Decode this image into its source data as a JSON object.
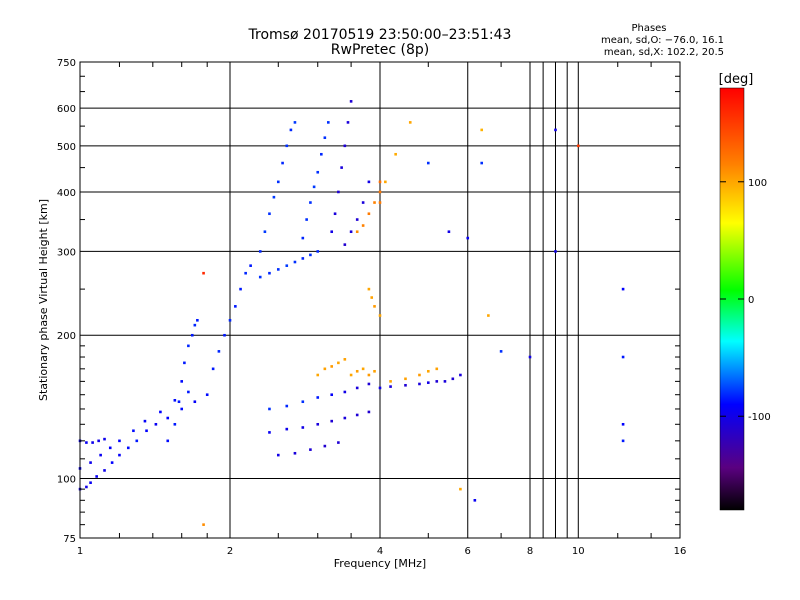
{
  "chart_data": {
    "type": "scatter",
    "title": "Tromsø 20170519 23:50:00–23:51:43",
    "subtitle": "RwPretec (8p)",
    "xlabel": "Frequency [MHz]",
    "ylabel": "Stationary phase Virtual Height [km]",
    "xscale": "log",
    "yscale": "log",
    "xlim": [
      1,
      16
    ],
    "ylim": [
      75,
      750
    ],
    "xticks": [
      1,
      2,
      4,
      6,
      8,
      10,
      16
    ],
    "yticks": [
      75,
      100,
      200,
      300,
      400,
      500,
      600,
      750
    ],
    "grid": true,
    "annotation": {
      "title": "Phases",
      "lines": [
        "mean, sd,O: −76.0, 16.1",
        "mean, sd,X: 102.2, 20.5"
      ]
    },
    "colorbar": {
      "label": "[deg]",
      "range": [
        -180,
        180
      ],
      "ticks": [
        100,
        0,
        -100
      ]
    },
    "series": [
      {
        "color_by": "phase_deg",
        "points": [
          [
            1.0,
            95,
            -100
          ],
          [
            1.03,
            96,
            -100
          ],
          [
            1.05,
            98,
            -95
          ],
          [
            1.08,
            101,
            -95
          ],
          [
            1.12,
            104,
            -98
          ],
          [
            1.16,
            108,
            -90
          ],
          [
            1.2,
            112,
            -92
          ],
          [
            1.25,
            116,
            -88
          ],
          [
            1.3,
            120,
            -85
          ],
          [
            1.36,
            126,
            -90
          ],
          [
            1.42,
            130,
            -95
          ],
          [
            1.5,
            134,
            -90
          ],
          [
            1.6,
            140,
            -88
          ],
          [
            1.7,
            145,
            -92
          ],
          [
            1.0,
            105,
            -95
          ],
          [
            1.05,
            108,
            -98
          ],
          [
            1.1,
            112,
            -95
          ],
          [
            1.15,
            116,
            -92
          ],
          [
            1.2,
            120,
            -90
          ],
          [
            1.28,
            126,
            -88
          ],
          [
            1.35,
            132,
            -92
          ],
          [
            1.45,
            138,
            -90
          ],
          [
            1.55,
            146,
            -88
          ],
          [
            1.65,
            152,
            -85
          ],
          [
            1.0,
            120,
            -95
          ],
          [
            1.03,
            119,
            -95
          ],
          [
            1.06,
            119,
            -98
          ],
          [
            1.09,
            120,
            -100
          ],
          [
            1.12,
            121,
            -98
          ],
          [
            1.5,
            120,
            -88
          ],
          [
            1.55,
            130,
            -85
          ],
          [
            1.58,
            145,
            -85
          ],
          [
            1.6,
            160,
            -88
          ],
          [
            1.62,
            175,
            -85
          ],
          [
            1.65,
            190,
            -82
          ],
          [
            1.68,
            200,
            -85
          ],
          [
            1.7,
            210,
            -82
          ],
          [
            1.72,
            215,
            -85
          ],
          [
            1.8,
            150,
            -88
          ],
          [
            1.85,
            170,
            -85
          ],
          [
            1.9,
            185,
            -82
          ],
          [
            1.95,
            200,
            -85
          ],
          [
            2.0,
            215,
            -82
          ],
          [
            2.05,
            230,
            -85
          ],
          [
            2.1,
            250,
            -85
          ],
          [
            2.15,
            270,
            -82
          ],
          [
            2.2,
            280,
            -85
          ],
          [
            2.3,
            265,
            -80
          ],
          [
            2.4,
            270,
            -82
          ],
          [
            2.5,
            275,
            -80
          ],
          [
            2.6,
            280,
            -78
          ],
          [
            2.7,
            285,
            -80
          ],
          [
            2.8,
            290,
            -82
          ],
          [
            2.9,
            295,
            -80
          ],
          [
            3.0,
            300,
            -82
          ],
          [
            2.3,
            300,
            -82
          ],
          [
            2.35,
            330,
            -78
          ],
          [
            2.4,
            360,
            -80
          ],
          [
            2.45,
            390,
            -78
          ],
          [
            2.5,
            420,
            -80
          ],
          [
            2.55,
            460,
            -82
          ],
          [
            2.6,
            500,
            -80
          ],
          [
            2.65,
            540,
            -82
          ],
          [
            2.7,
            560,
            -78
          ],
          [
            2.8,
            320,
            -82
          ],
          [
            2.85,
            350,
            -80
          ],
          [
            2.9,
            380,
            -80
          ],
          [
            2.95,
            410,
            -78
          ],
          [
            3.0,
            440,
            -80
          ],
          [
            3.05,
            480,
            -82
          ],
          [
            3.1,
            520,
            -80
          ],
          [
            3.15,
            560,
            -80
          ],
          [
            3.2,
            330,
            -100
          ],
          [
            3.25,
            360,
            -105
          ],
          [
            3.3,
            400,
            -108
          ],
          [
            3.35,
            450,
            -105
          ],
          [
            3.4,
            500,
            -108
          ],
          [
            3.45,
            560,
            -105
          ],
          [
            3.5,
            620,
            -108
          ],
          [
            3.4,
            310,
            -110
          ],
          [
            3.5,
            330,
            -105
          ],
          [
            3.6,
            350,
            -108
          ],
          [
            3.7,
            380,
            -105
          ],
          [
            3.8,
            420,
            -100
          ],
          [
            2.4,
            140,
            -80
          ],
          [
            2.6,
            142,
            -82
          ],
          [
            2.8,
            145,
            -80
          ],
          [
            3.0,
            148,
            -85
          ],
          [
            3.2,
            150,
            -92
          ],
          [
            3.4,
            152,
            -100
          ],
          [
            3.6,
            155,
            -105
          ],
          [
            3.8,
            158,
            -108
          ],
          [
            2.4,
            125,
            -95
          ],
          [
            2.6,
            127,
            -98
          ],
          [
            2.8,
            128,
            -100
          ],
          [
            3.0,
            130,
            -105
          ],
          [
            3.2,
            132,
            -108
          ],
          [
            3.4,
            134,
            -105
          ],
          [
            3.6,
            136,
            -108
          ],
          [
            3.8,
            138,
            -110
          ],
          [
            2.5,
            112,
            -100
          ],
          [
            2.7,
            113,
            -105
          ],
          [
            2.9,
            115,
            -108
          ],
          [
            3.1,
            117,
            -110
          ],
          [
            3.3,
            119,
            -108
          ],
          [
            3.0,
            165,
            100
          ],
          [
            3.1,
            170,
            102
          ],
          [
            3.2,
            172,
            105
          ],
          [
            3.3,
            175,
            100
          ],
          [
            3.4,
            178,
            102
          ],
          [
            3.5,
            165,
            100
          ],
          [
            3.6,
            168,
            103
          ],
          [
            3.7,
            170,
            100
          ],
          [
            3.8,
            165,
            105
          ],
          [
            3.9,
            168,
            102
          ],
          [
            4.0,
            155,
            -100
          ],
          [
            4.2,
            156,
            -105
          ],
          [
            4.5,
            157,
            -108
          ],
          [
            4.8,
            158,
            -105
          ],
          [
            5.0,
            159,
            -100
          ],
          [
            5.2,
            160,
            -108
          ],
          [
            5.4,
            160,
            -105
          ],
          [
            5.6,
            162,
            -108
          ],
          [
            5.8,
            165,
            -105
          ],
          [
            4.2,
            160,
            100
          ],
          [
            4.5,
            162,
            102
          ],
          [
            4.8,
            165,
            105
          ],
          [
            5.0,
            168,
            100
          ],
          [
            5.2,
            170,
            102
          ],
          [
            3.6,
            330,
            110
          ],
          [
            3.7,
            340,
            115
          ],
          [
            3.8,
            360,
            118
          ],
          [
            3.9,
            380,
            115
          ],
          [
            4.0,
            400,
            120
          ],
          [
            4.0,
            420,
            125
          ],
          [
            4.0,
            380,
            118
          ],
          [
            3.8,
            250,
            100
          ],
          [
            3.85,
            240,
            102
          ],
          [
            3.9,
            230,
            105
          ],
          [
            4.0,
            220,
            100
          ],
          [
            4.1,
            420,
            100
          ],
          [
            4.3,
            480,
            98
          ],
          [
            4.6,
            560,
            100
          ],
          [
            5.0,
            460,
            -80
          ],
          [
            5.5,
            330,
            -100
          ],
          [
            6.0,
            320,
            -95
          ],
          [
            6.4,
            540,
            95
          ],
          [
            6.4,
            460,
            -80
          ],
          [
            6.6,
            220,
            100
          ],
          [
            7.0,
            185,
            -80
          ],
          [
            8.0,
            180,
            -100
          ],
          [
            9.0,
            540,
            -100
          ],
          [
            9.0,
            300,
            -100
          ],
          [
            10.0,
            500,
            150
          ],
          [
            12.3,
            250,
            -90
          ],
          [
            12.3,
            180,
            -85
          ],
          [
            12.3,
            130,
            -90
          ],
          [
            12.3,
            120,
            -85
          ],
          [
            1.77,
            270,
            160
          ],
          [
            1.77,
            80,
            110
          ],
          [
            5.8,
            95,
            100
          ],
          [
            6.2,
            90,
            -95
          ]
        ]
      }
    ]
  }
}
